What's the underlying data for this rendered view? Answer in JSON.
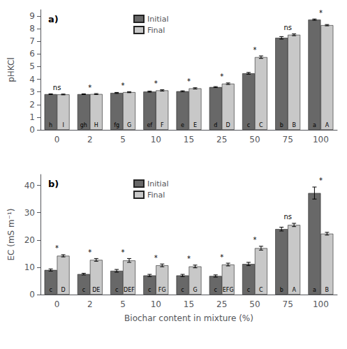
{
  "chart_data": [
    {
      "type": "bar",
      "title": "a)",
      "categories": [
        0,
        2,
        5,
        10,
        15,
        25,
        50,
        75,
        100
      ],
      "series": [
        {
          "name": "Initial",
          "color": "#686868",
          "values": [
            2.82,
            2.82,
            2.92,
            3.02,
            3.05,
            3.38,
            4.47,
            7.28,
            8.72
          ],
          "error": [
            0.03,
            0.03,
            0.04,
            0.04,
            0.04,
            0.04,
            0.07,
            0.1,
            0.05
          ],
          "labels": [
            "h",
            "gh",
            "fg",
            "ef",
            "e",
            "d",
            "c",
            "b",
            "a"
          ]
        },
        {
          "name": "Final",
          "color": "#c8c8c8",
          "values": [
            2.8,
            2.83,
            2.98,
            3.12,
            3.28,
            3.65,
            5.75,
            7.52,
            8.28
          ],
          "error": [
            0.03,
            0.04,
            0.04,
            0.05,
            0.05,
            0.06,
            0.1,
            0.07,
            0.05
          ],
          "labels": [
            "I",
            "H",
            "G",
            "F",
            "E",
            "D",
            "C",
            "B",
            "A"
          ]
        }
      ],
      "annotations": [
        "ns",
        "*",
        "*",
        "*",
        "*",
        "*",
        "*",
        "ns",
        "*"
      ],
      "ylabel": "pHKCl",
      "ylim": [
        0.0,
        9.5
      ],
      "yticks": [
        0,
        1,
        2,
        3,
        4,
        5,
        6,
        7,
        8,
        9
      ],
      "legend": "upper left",
      "grid": false
    },
    {
      "type": "bar",
      "title": "b)",
      "categories": [
        0,
        2,
        5,
        10,
        15,
        25,
        50,
        75,
        100
      ],
      "series": [
        {
          "name": "Initial",
          "color": "#686868",
          "values": [
            9.0,
            7.5,
            8.7,
            7.0,
            7.0,
            6.8,
            11.2,
            24.0,
            37.2
          ],
          "error": [
            0.4,
            0.3,
            0.5,
            0.4,
            0.4,
            0.4,
            0.6,
            0.7,
            2.2
          ],
          "labels": [
            "c",
            "c",
            "c",
            "c",
            "c",
            "c",
            "c",
            "b",
            "a"
          ]
        },
        {
          "name": "Final",
          "color": "#c8c8c8",
          "values": [
            14.2,
            12.7,
            12.5,
            10.7,
            10.3,
            11.0,
            17.0,
            25.5,
            22.3
          ],
          "error": [
            0.4,
            0.5,
            0.7,
            0.5,
            0.5,
            0.5,
            0.7,
            0.6,
            0.5
          ],
          "labels": [
            "D",
            "DE",
            "DEF",
            "FG",
            "G",
            "EFG",
            "C",
            "A",
            "B"
          ]
        }
      ],
      "annotations": [
        "*",
        "*",
        "*",
        "*",
        "*",
        "*",
        "*",
        "ns",
        "*"
      ],
      "xlabel": "Biochar content in mixture (%)",
      "ylabel": "EC (mS m⁻¹)",
      "ylim": [
        0,
        44
      ],
      "yticks": [
        0,
        10,
        20,
        30,
        40
      ],
      "legend": "upper left",
      "grid": false
    }
  ]
}
